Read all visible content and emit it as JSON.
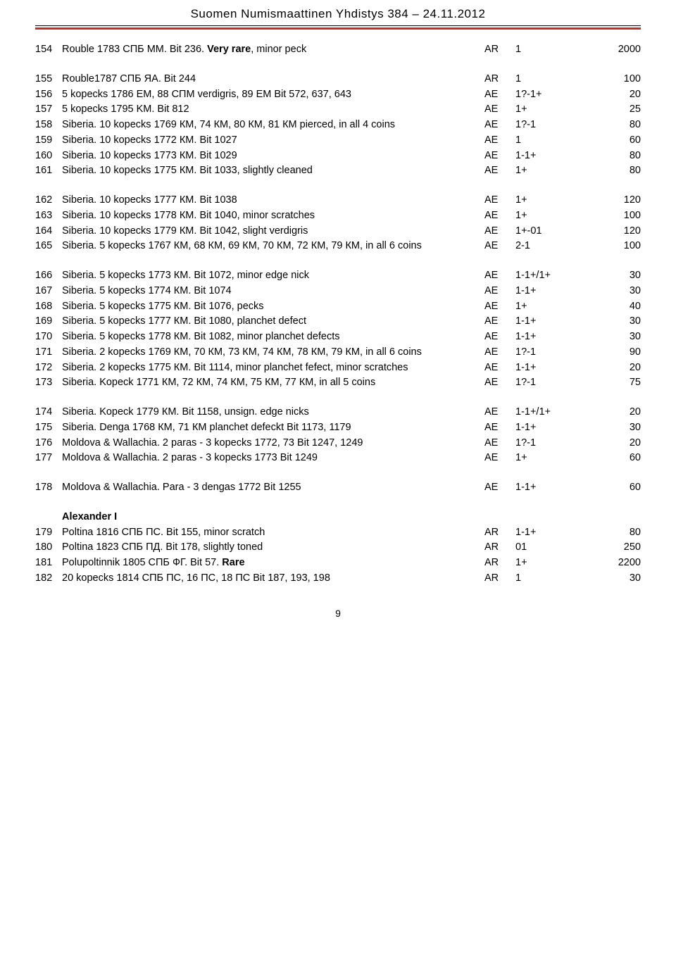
{
  "header": "Suomen Numismaattinen Yhdistys 384 – 24.11.2012",
  "page_number": "9",
  "section_title": "Alexander I",
  "rows": [
    {
      "lot": "154",
      "desc": "Rouble 1783 СПБ ММ. Bit 236. <b>Very rare</b>, minor peck",
      "metal": "AR",
      "grade": "1",
      "price": "2000"
    },
    {
      "spacer": true
    },
    {
      "lot": "155",
      "desc": "Rouble1787 СПБ ЯА. Bit 244",
      "metal": "AR",
      "grade": "1",
      "price": "100"
    },
    {
      "lot": "156",
      "desc": "5 kopecks 1786 ЕМ, 88 СПМ verdigris, 89 ЕМ Bit 572, 637, 643",
      "metal": "AE",
      "grade": "1?-1+",
      "price": "20"
    },
    {
      "lot": "157",
      "desc": "5 kopecks 1795 KM. Bit 812",
      "metal": "AE",
      "grade": "1+",
      "price": "25"
    },
    {
      "lot": "158",
      "desc": "Siberia. 10 kopecks 1769 КМ, 74 КМ, 80 КМ, 81 КМ pierced, in all 4 coins",
      "metal": "AE",
      "grade": "1?-1",
      "price": "80"
    },
    {
      "lot": "159",
      "desc": "Siberia. 10 kopecks 1772 КМ. Bit 1027",
      "metal": "AE",
      "grade": "1",
      "price": "60"
    },
    {
      "lot": "160",
      "desc": "Siberia. 10 kopecks 1773 КМ. Bit 1029",
      "metal": "AE",
      "grade": "1-1+",
      "price": "80"
    },
    {
      "lot": "161",
      "desc": "Siberia. 10 kopecks 1775 КМ. Bit 1033, slightly cleaned",
      "metal": "AE",
      "grade": "1+",
      "price": "80"
    },
    {
      "spacer": true
    },
    {
      "lot": "162",
      "desc": "Siberia. 10 kopecks 1777 КМ. Bit 1038",
      "metal": "AE",
      "grade": "1+",
      "price": "120"
    },
    {
      "lot": "163",
      "desc": "Siberia. 10 kopecks 1778 КМ. Bit 1040, minor scratches",
      "metal": "AE",
      "grade": "1+",
      "price": "100"
    },
    {
      "lot": "164",
      "desc": "Siberia. 10 kopecks 1779 КМ. Bit 1042, slight verdigris",
      "metal": "AE",
      "grade": "1+-01",
      "price": "120"
    },
    {
      "lot": "165",
      "desc": "Siberia. 5 kopecks 1767 КМ, 68 КМ, 69 КМ, 70 КМ, 72 КМ, 79 КМ, in all 6 coins",
      "metal": "AE",
      "grade": "2-1",
      "price": "100"
    },
    {
      "spacer": true
    },
    {
      "lot": "166",
      "desc": "Siberia. 5 kopecks 1773 КМ. Bit 1072, minor edge nick",
      "metal": "AE",
      "grade": "1-1+/1+",
      "price": "30"
    },
    {
      "lot": "167",
      "desc": "Siberia. 5 kopecks 1774 КМ. Bit 1074",
      "metal": "AE",
      "grade": "1-1+",
      "price": "30"
    },
    {
      "lot": "168",
      "desc": "Siberia. 5 kopecks 1775 КМ. Bit 1076, pecks",
      "metal": "AE",
      "grade": "1+",
      "price": "40"
    },
    {
      "lot": "169",
      "desc": "Siberia. 5 kopecks 1777 КМ. Bit 1080, planchet defect",
      "metal": "AE",
      "grade": "1-1+",
      "price": "30"
    },
    {
      "lot": "170",
      "desc": "Siberia. 5 kopecks 1778 КМ. Bit 1082, minor planchet defects",
      "metal": "AE",
      "grade": "1-1+",
      "price": "30"
    },
    {
      "lot": "171",
      "desc": "Siberia. 2 kopecks 1769 КМ, 70 КМ, 73 КМ, 74 КМ, 78 КМ, 79 КМ, in all 6 coins",
      "metal": "AE",
      "grade": "1?-1",
      "price": "90"
    },
    {
      "lot": "172",
      "desc": "Siberia. 2 kopecks 1775 КМ. Bit 1114, minor planchet fefect, minor scratches",
      "metal": "AE",
      "grade": "1-1+",
      "price": "20"
    },
    {
      "lot": "173",
      "desc": "Siberia. Kopeck 1771 КМ, 72 КМ, 74 КМ, 75 КМ, 77 КМ, in all 5 coins",
      "metal": "AE",
      "grade": "1?-1",
      "price": "75"
    },
    {
      "spacer": true
    },
    {
      "lot": "174",
      "desc": "Siberia. Kopeck 1779 КМ. Bit 1158, unsign. edge nicks",
      "metal": "AE",
      "grade": "1-1+/1+",
      "price": "20"
    },
    {
      "lot": "175",
      "desc": "Siberia. Denga 1768 КМ, 71 КМ planchet defeckt Bit 1173, 1179",
      "metal": "AE",
      "grade": "1-1+",
      "price": "30"
    },
    {
      "lot": "176",
      "desc": "Moldova & Wallachia. 2 paras - 3 kopecks 1772, 73 Bit 1247, 1249",
      "metal": "AE",
      "grade": "1?-1",
      "price": "20"
    },
    {
      "lot": "177",
      "desc": "Moldova & Wallachia. 2 paras - 3 kopecks 1773 Bit 1249",
      "metal": "AE",
      "grade": "1+",
      "price": "60"
    },
    {
      "spacer": true
    },
    {
      "lot": "178",
      "desc": "Moldova & Wallachia. Para - 3 dengas 1772 Bit 1255",
      "metal": "AE",
      "grade": "1-1+",
      "price": "60"
    },
    {
      "spacer": true
    },
    {
      "section": true
    },
    {
      "lot": "179",
      "desc": "Poltina 1816 СПБ ПС. Bit 155, minor scratch",
      "metal": "AR",
      "grade": "1-1+",
      "price": "80"
    },
    {
      "lot": "180",
      "desc": "Poltina 1823 СПБ ПД. Bit 178, slightly toned",
      "metal": "AR",
      "grade": "01",
      "price": "250"
    },
    {
      "lot": "181",
      "desc": "Polupoltinnik 1805 СПБ ФГ. Bit 57. <b>Rare</b>",
      "metal": "AR",
      "grade": "1+",
      "price": "2200"
    },
    {
      "lot": "182",
      "desc": "20 kopecks 1814 СПБ ПС, 16 ПС, 18 ПС Bit 187, 193, 198",
      "metal": "AR",
      "grade": "1",
      "price": "30"
    }
  ]
}
